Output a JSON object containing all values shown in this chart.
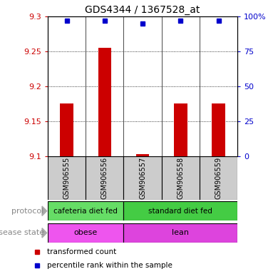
{
  "title": "GDS4344 / 1367528_at",
  "samples": [
    "GSM906555",
    "GSM906556",
    "GSM906557",
    "GSM906558",
    "GSM906559"
  ],
  "bar_values": [
    9.175,
    9.255,
    9.103,
    9.175,
    9.175
  ],
  "dot_values": [
    97,
    97,
    95,
    97,
    97
  ],
  "ylim_left": [
    9.1,
    9.3
  ],
  "ylim_right": [
    0,
    100
  ],
  "yticks_left": [
    9.1,
    9.15,
    9.2,
    9.25,
    9.3
  ],
  "yticks_right": [
    0,
    25,
    50,
    75,
    100
  ],
  "ytick_labels_right": [
    "0",
    "25",
    "50",
    "75",
    "100%"
  ],
  "bar_color": "#cc0000",
  "dot_color": "#0000cc",
  "protocol_labels": [
    [
      "cafeteria diet fed",
      0,
      2
    ],
    [
      "standard diet fed",
      2,
      5
    ]
  ],
  "protocol_colors": [
    "#66dd66",
    "#44cc44"
  ],
  "disease_labels": [
    [
      "obese",
      0,
      2
    ],
    [
      "lean",
      2,
      5
    ]
  ],
  "disease_colors": [
    "#ee55ee",
    "#dd44dd"
  ],
  "legend_items": [
    {
      "label": "transformed count",
      "color": "#cc0000"
    },
    {
      "label": "percentile rank within the sample",
      "color": "#0000cc"
    }
  ],
  "protocol_row_label": "protocol",
  "disease_row_label": "disease state",
  "left_tick_color": "#cc0000",
  "right_tick_color": "#0000cc",
  "bar_bottom": 9.1,
  "bar_width": 0.35,
  "sample_box_color": "#cccccc"
}
